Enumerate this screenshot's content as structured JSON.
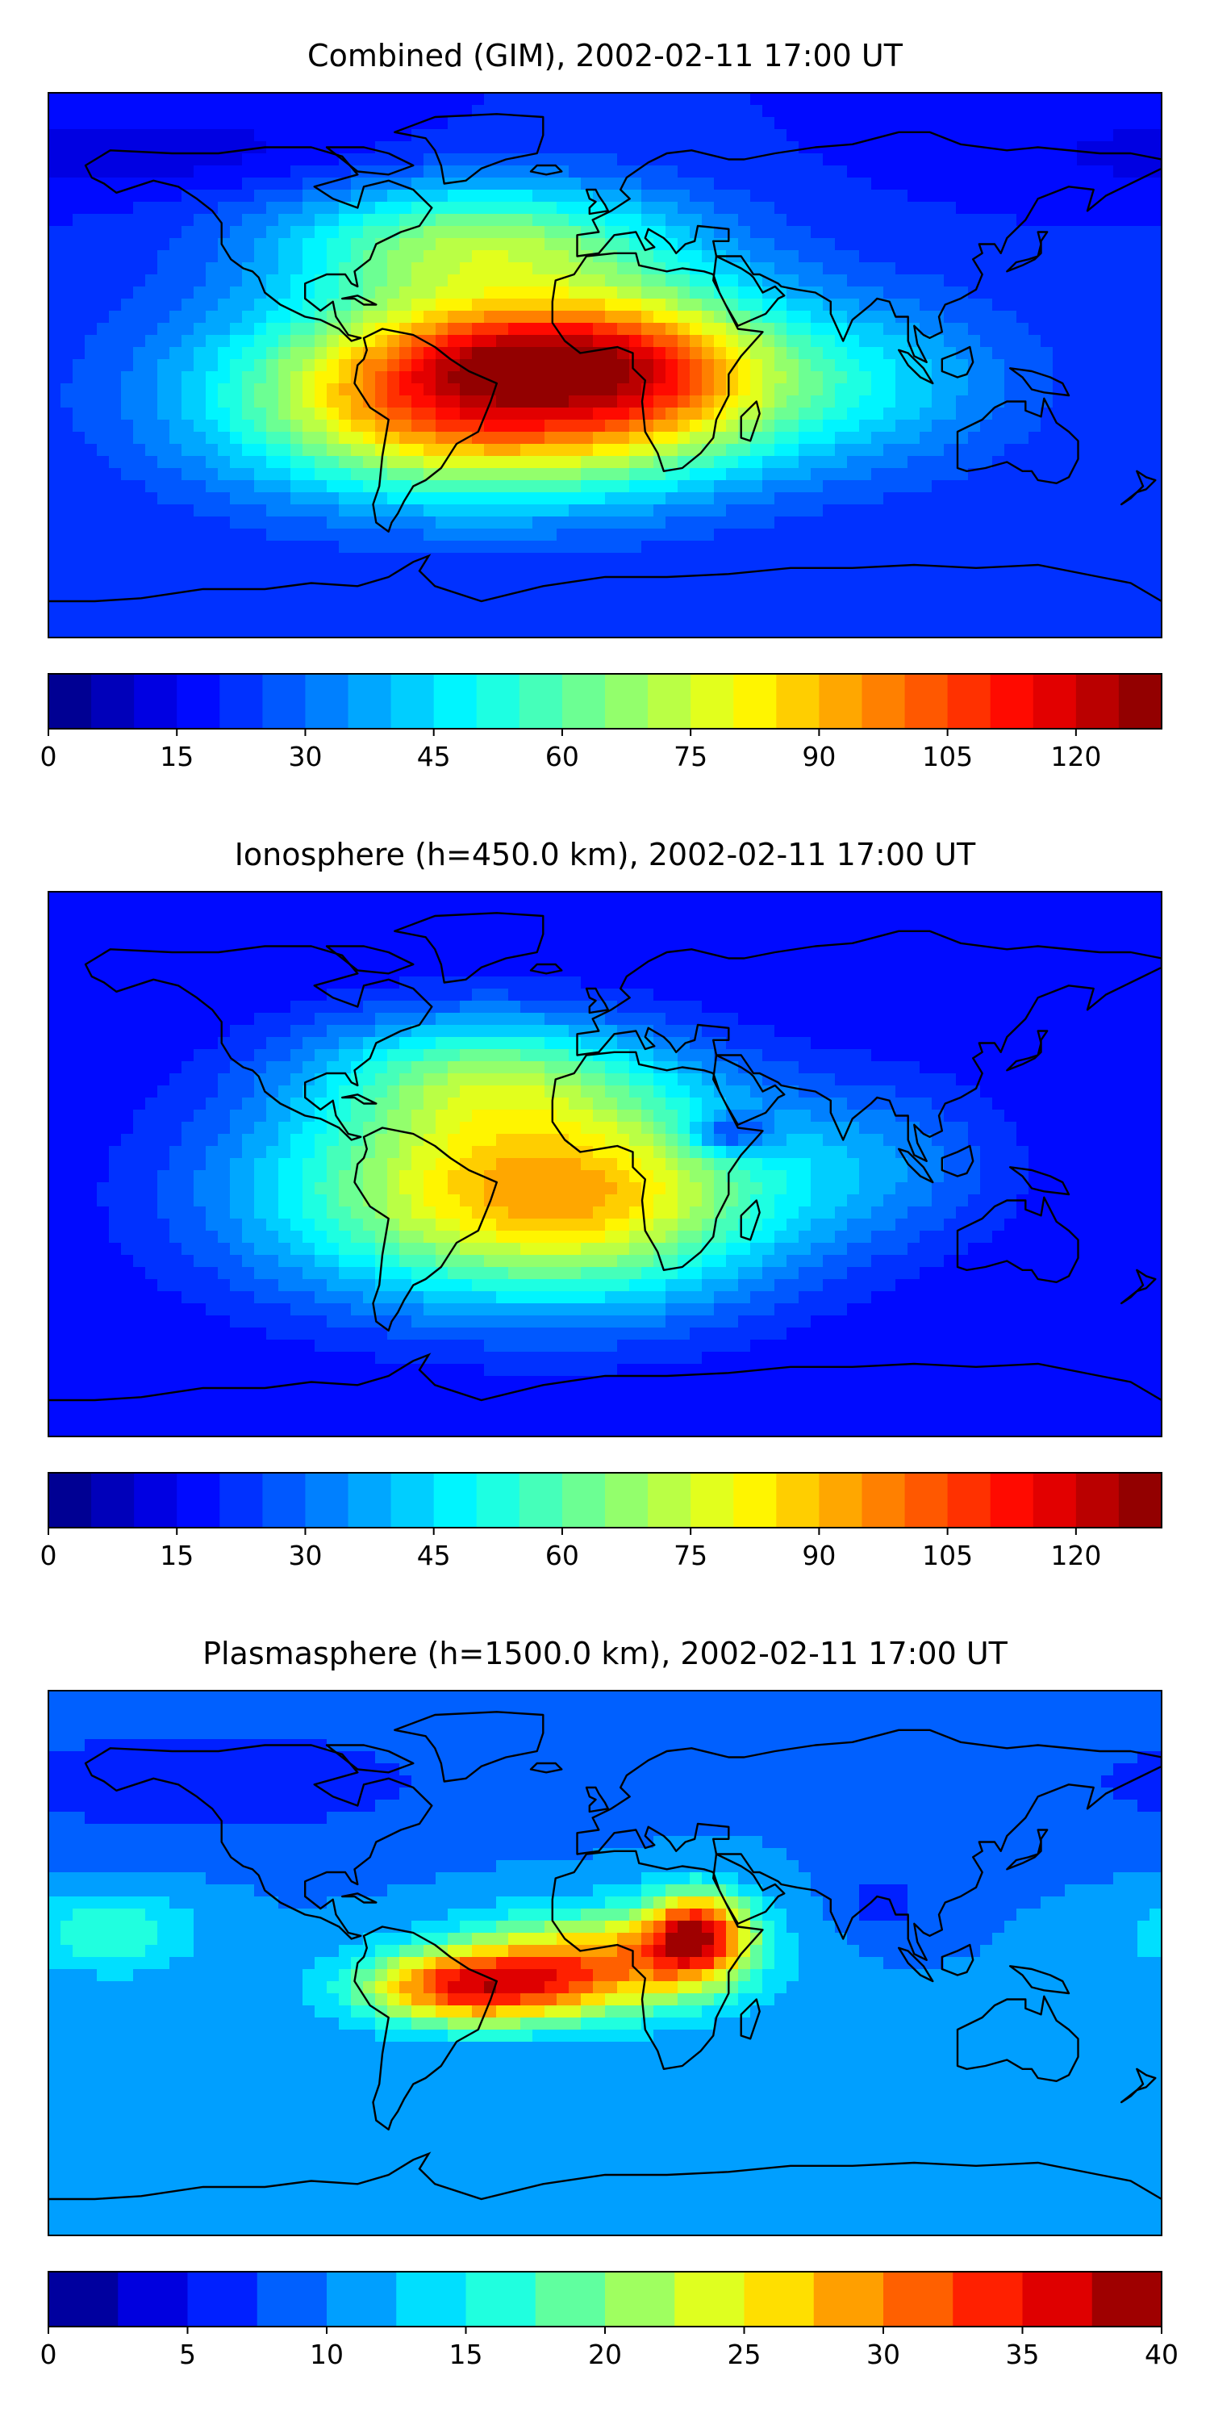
{
  "panels": [
    {
      "title": "Combined (GIM), 2002-02-11 17:00 UT",
      "colorbar": {
        "vmin": 0,
        "vmax": 130,
        "levels": 26,
        "ticks": [
          0,
          15,
          30,
          45,
          60,
          75,
          90,
          105,
          120
        ]
      },
      "field": {
        "background": 20,
        "blobs": [
          {
            "lon": -40,
            "lat": -10,
            "amp": 95,
            "sx": 55,
            "sy": 22
          },
          {
            "lon": -25,
            "lat": 5,
            "amp": 25,
            "sx": 30,
            "sy": 10
          },
          {
            "lon": 20,
            "lat": 0,
            "amp": 35,
            "sx": 30,
            "sy": 20
          },
          {
            "lon": -40,
            "lat": 40,
            "amp": 45,
            "sx": 45,
            "sy": 15
          },
          {
            "lon": 85,
            "lat": -5,
            "amp": 20,
            "sx": 35,
            "sy": 20
          },
          {
            "lon": -150,
            "lat": 70,
            "amp": -8,
            "sx": 60,
            "sy": 10
          }
        ]
      }
    },
    {
      "title": "Ionosphere  (h=450.0 km), 2002-02-11 17:00 UT",
      "colorbar": {
        "vmin": 0,
        "vmax": 130,
        "levels": 26,
        "ticks": [
          0,
          15,
          30,
          45,
          60,
          75,
          90,
          105,
          120
        ]
      },
      "field": {
        "background": 15,
        "blobs": [
          {
            "lon": -40,
            "lat": -10,
            "amp": 60,
            "sx": 55,
            "sy": 25
          },
          {
            "lon": -40,
            "lat": 30,
            "amp": 35,
            "sx": 40,
            "sy": 15
          },
          {
            "lon": 10,
            "lat": -10,
            "amp": 30,
            "sx": 40,
            "sy": 25
          },
          {
            "lon": 40,
            "lat": 10,
            "amp": -25,
            "sx": 10,
            "sy": 5
          },
          {
            "lon": 90,
            "lat": 0,
            "amp": 15,
            "sx": 30,
            "sy": 20
          }
        ]
      }
    },
    {
      "title": "Plasmasphere (h=1500.0 km), 2002-02-11 17:00 UT",
      "colorbar": {
        "vmin": 0,
        "vmax": 40,
        "levels": 16,
        "ticks": [
          0,
          5,
          10,
          15,
          20,
          25,
          30,
          35,
          40
        ]
      },
      "field": {
        "background": 10,
        "blobs": [
          {
            "lon": -45,
            "lat": -8,
            "amp": 22,
            "sx": 25,
            "sy": 9
          },
          {
            "lon": 0,
            "lat": 0,
            "amp": 18,
            "sx": 30,
            "sy": 12
          },
          {
            "lon": 30,
            "lat": 10,
            "amp": 22,
            "sx": 12,
            "sy": 10
          },
          {
            "lon": 90,
            "lat": 20,
            "amp": -4,
            "sx": 10,
            "sy": 8
          },
          {
            "lon": -160,
            "lat": 10,
            "amp": 7,
            "sx": 20,
            "sy": 10
          },
          {
            "lon": -130,
            "lat": 60,
            "amp": -4,
            "sx": 70,
            "sy": 15
          }
        ]
      }
    }
  ]
}
